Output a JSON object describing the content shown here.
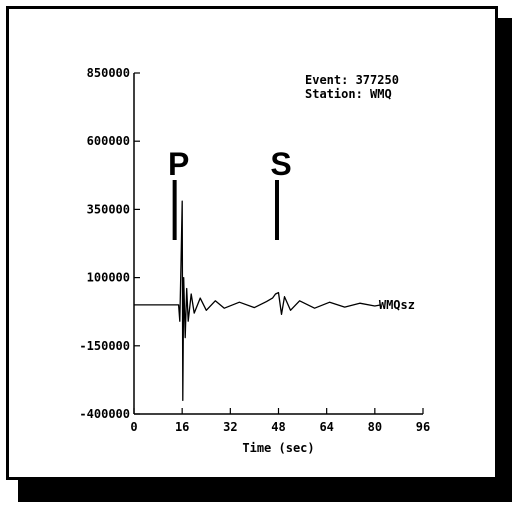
{
  "chart_data": {
    "type": "line",
    "title": "",
    "annotation": [
      "Event: 377250",
      "Station: WMQ"
    ],
    "xlabel": "Time (sec)",
    "ylabel": "",
    "xlim": [
      0,
      96
    ],
    "ylim": [
      -400000,
      850000
    ],
    "xticks": [
      0,
      16,
      32,
      48,
      64,
      80,
      96
    ],
    "yticks": [
      850000,
      600000,
      350000,
      100000,
      -150000,
      -400000
    ],
    "series_label": "WMQsz",
    "phase_markers": [
      {
        "label": "P",
        "x": 13.5
      },
      {
        "label": "S",
        "x": 47.5
      }
    ],
    "series": [
      {
        "name": "WMQsz",
        "x": [
          0,
          10,
          14.8,
          15.2,
          15.6,
          16.0,
          16.2,
          16.5,
          17.0,
          17.5,
          18.0,
          19.0,
          20.0,
          22.0,
          24.0,
          27.0,
          30.0,
          35.0,
          40.0,
          44.0,
          46.0,
          47.0,
          48.0,
          49.0,
          50.0,
          52.0,
          55.0,
          60.0,
          65.0,
          70.0,
          75.0,
          80.0,
          82.0
        ],
        "y": [
          0,
          0,
          0,
          -60000,
          150000,
          380000,
          -350000,
          100000,
          -120000,
          60000,
          -60000,
          40000,
          -30000,
          25000,
          -20000,
          15000,
          -12000,
          10000,
          -10000,
          12000,
          25000,
          40000,
          45000,
          -35000,
          30000,
          -20000,
          15000,
          -12000,
          10000,
          -8000,
          6000,
          -4000,
          0
        ]
      }
    ]
  }
}
